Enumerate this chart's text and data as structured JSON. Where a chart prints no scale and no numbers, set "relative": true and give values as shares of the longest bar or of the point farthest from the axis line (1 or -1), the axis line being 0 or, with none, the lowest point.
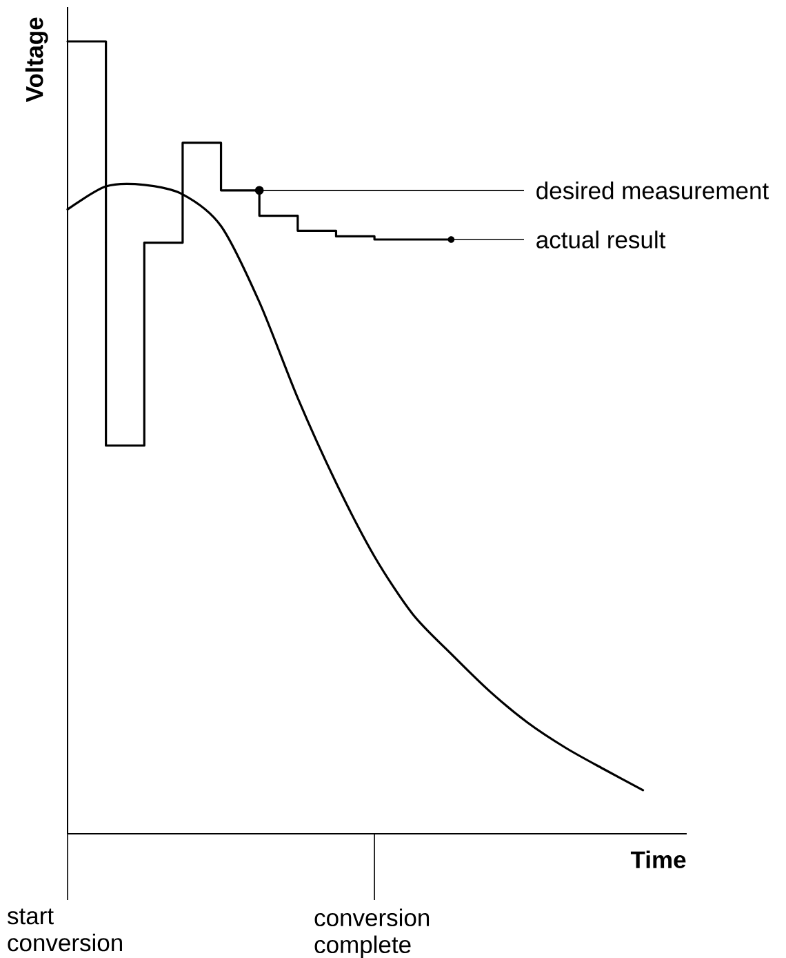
{
  "chart_data": {
    "type": "line",
    "relative": true,
    "xlabel": "Time",
    "ylabel": "Voltage",
    "tick_labels": "x",
    "categories": [
      "start conversion",
      null,
      null,
      null,
      null,
      null,
      null,
      null,
      "conversion complete",
      null,
      null,
      null,
      null,
      null,
      null,
      null,
      null
    ],
    "series": [
      {
        "color": "#000000",
        "values": [
          0.788,
          0.817,
          0.819,
          0.807,
          0.767,
          0.671,
          0.55,
          0.443,
          0.35,
          0.277,
          0.227,
          0.18,
          0.14,
          0.108,
          0.081,
          0.055,
          null
        ]
      },
      {
        "type": "step",
        "name": "actual result",
        "color": "#000000",
        "values": [
          1.0,
          0.49,
          0.746,
          0.872,
          0.812,
          0.78,
          0.761,
          0.754,
          0.75,
          0.75,
          0.75,
          null,
          null,
          null,
          null,
          null,
          null
        ]
      },
      {
        "type": "scatter",
        "name": "desired measurement",
        "color": "#000000",
        "values": [
          null,
          null,
          null,
          null,
          null,
          0.812,
          null,
          null,
          null,
          null,
          null,
          null,
          null,
          null,
          null,
          null,
          null
        ]
      }
    ]
  }
}
